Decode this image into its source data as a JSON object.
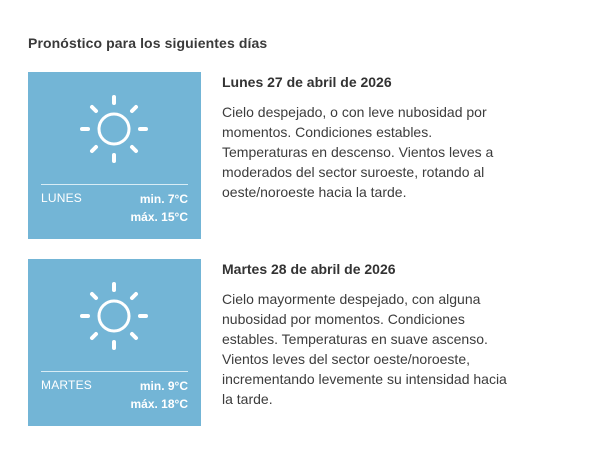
{
  "section": {
    "title": "Pronóstico para los siguientes días"
  },
  "forecast": [
    {
      "icon": "sun-icon",
      "day_name": "LUNES",
      "min_label": "min. 7°C",
      "max_label": "máx. 15°C",
      "date": "Lunes 27 de abril de 2026",
      "description": "Cielo despejado, o con leve nubosidad por momentos. Condiciones estables. Temperaturas en descenso. Vientos leves a moderados del sector suroeste, rotando al oeste/noroeste hacia la tarde."
    },
    {
      "icon": "sun-icon",
      "day_name": "MARTES",
      "min_label": "min. 9°C",
      "max_label": "máx. 18°C",
      "date": "Martes 28 de abril de 2026",
      "description": "Cielo mayormente despejado, con alguna nubosidad por momentos. Condiciones estables. Temperaturas en suave ascenso. Vientos leves del sector oeste/noroeste, incrementando levemente su intensidad hacia la tarde."
    }
  ],
  "colors": {
    "card_background": "#73b5d6",
    "card_text": "#ffffff",
    "body_text": "#333333"
  }
}
